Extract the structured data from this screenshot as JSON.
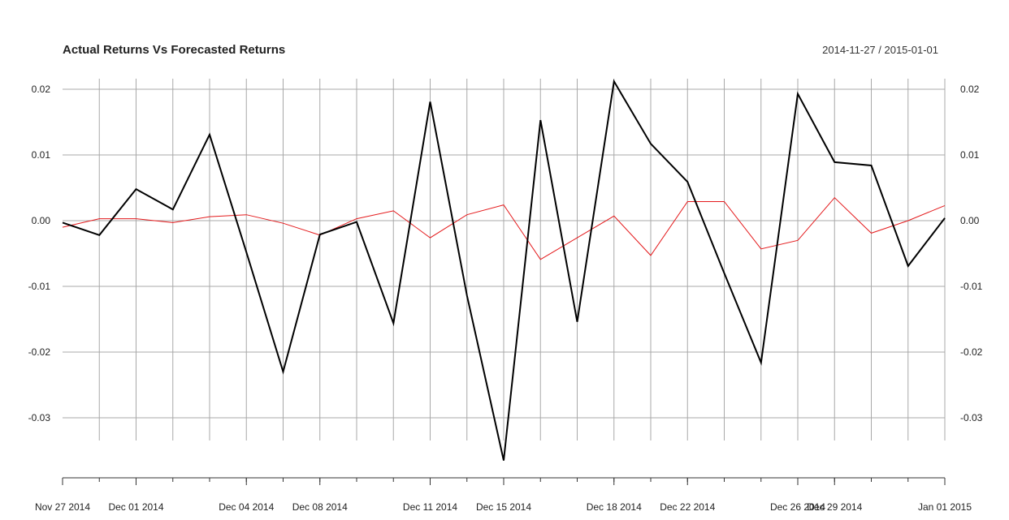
{
  "chart_data": {
    "type": "line",
    "title": "Actual Returns Vs Forecasted Returns",
    "date_range_label": "2014-11-27 / 2015-01-01",
    "x": [
      "2014-11-27",
      "2014-11-28",
      "2014-12-01",
      "2014-12-02",
      "2014-12-03",
      "2014-12-04",
      "2014-12-05",
      "2014-12-08",
      "2014-12-09",
      "2014-12-10",
      "2014-12-11",
      "2014-12-12",
      "2014-12-15",
      "2014-12-16",
      "2014-12-17",
      "2014-12-18",
      "2014-12-19",
      "2014-12-22",
      "2014-12-23",
      "2014-12-24",
      "2014-12-26",
      "2014-12-29",
      "2014-12-30",
      "2014-12-31",
      "2015-01-01"
    ],
    "x_tick_labels": [
      {
        "date": "2014-11-27",
        "label": "Nov 27 2014"
      },
      {
        "date": "2014-12-01",
        "label": "Dec 01 2014"
      },
      {
        "date": "2014-12-04",
        "label": "Dec 04 2014"
      },
      {
        "date": "2014-12-08",
        "label": "Dec 08 2014"
      },
      {
        "date": "2014-12-11",
        "label": "Dec 11 2014"
      },
      {
        "date": "2014-12-15",
        "label": "Dec 15 2014"
      },
      {
        "date": "2014-12-18",
        "label": "Dec 18 2014"
      },
      {
        "date": "2014-12-22",
        "label": "Dec 22 2014"
      },
      {
        "date": "2014-12-26",
        "label": "Dec 26 2014"
      },
      {
        "date": "2014-12-29",
        "label": "Dec 29 2014"
      },
      {
        "date": "2015-01-01",
        "label": "Jan 01 2015"
      }
    ],
    "y_ticks": [
      0.02,
      0.01,
      0.0,
      -0.01,
      -0.02,
      -0.03
    ],
    "y_tick_labels": [
      "0.02",
      "0.01",
      "0.00",
      "-0.01",
      "-0.02",
      "-0.03"
    ],
    "ylim": [
      -0.0365,
      0.0212
    ],
    "grid": true,
    "series": [
      {
        "color": "#000000",
        "values": [
          -0.0003,
          -0.0022,
          0.0048,
          0.0017,
          0.0131,
          -0.0048,
          -0.023,
          -0.0021,
          -0.0002,
          -0.0156,
          0.0181,
          -0.0114,
          -0.0365,
          0.0153,
          -0.0154,
          0.0212,
          0.0117,
          0.0059,
          -0.008,
          -0.0216,
          0.0193,
          0.0089,
          0.0084,
          -0.0069,
          0.0004
        ]
      },
      {
        "color": "#e41a1c",
        "values": [
          -0.001,
          0.0003,
          0.0003,
          -0.0003,
          0.0006,
          0.0009,
          -0.0004,
          -0.0022,
          0.0003,
          0.0015,
          -0.0026,
          0.0009,
          0.0024,
          -0.0059,
          -0.0026,
          0.0007,
          -0.0053,
          0.0029,
          0.0029,
          -0.0043,
          -0.003,
          0.0035,
          -0.0019,
          0.0,
          0.0023
        ]
      }
    ]
  }
}
